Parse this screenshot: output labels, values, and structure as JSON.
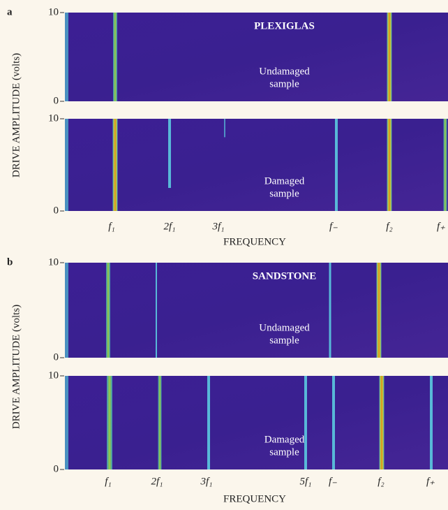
{
  "chart_data": [
    {
      "type": "spectrogram",
      "label": "a",
      "title": "PLEXIGLAS",
      "y_label": "DRIVE AMPLITUDE (volts)",
      "x_label": "FREQUENCY",
      "ylim": [
        0,
        10
      ],
      "yticks": [
        0,
        10
      ],
      "categories": [
        "f₁",
        "2f₁",
        "3f₁",
        "f₋",
        "f₂",
        "f₊"
      ],
      "panels": [
        {
          "caption": [
            "Undamaged",
            "sample"
          ]
        },
        {
          "caption": [
            "Damaged",
            "sample"
          ]
        }
      ]
    },
    {
      "type": "spectrogram",
      "label": "b",
      "title": "SANDSTONE",
      "y_label": "DRIVE AMPLITUDE (volts)",
      "x_label": "FREQUENCY",
      "ylim": [
        0,
        10
      ],
      "yticks": [
        0,
        10
      ],
      "categories": [
        "f₁",
        "2f₁",
        "3f₁",
        "5f₁",
        "f₋",
        "f₂",
        "f₊"
      ],
      "panels": [
        {
          "caption": [
            "Undamaged",
            "sample"
          ]
        },
        {
          "caption": [
            "Damaged",
            "sample"
          ]
        }
      ]
    }
  ]
}
